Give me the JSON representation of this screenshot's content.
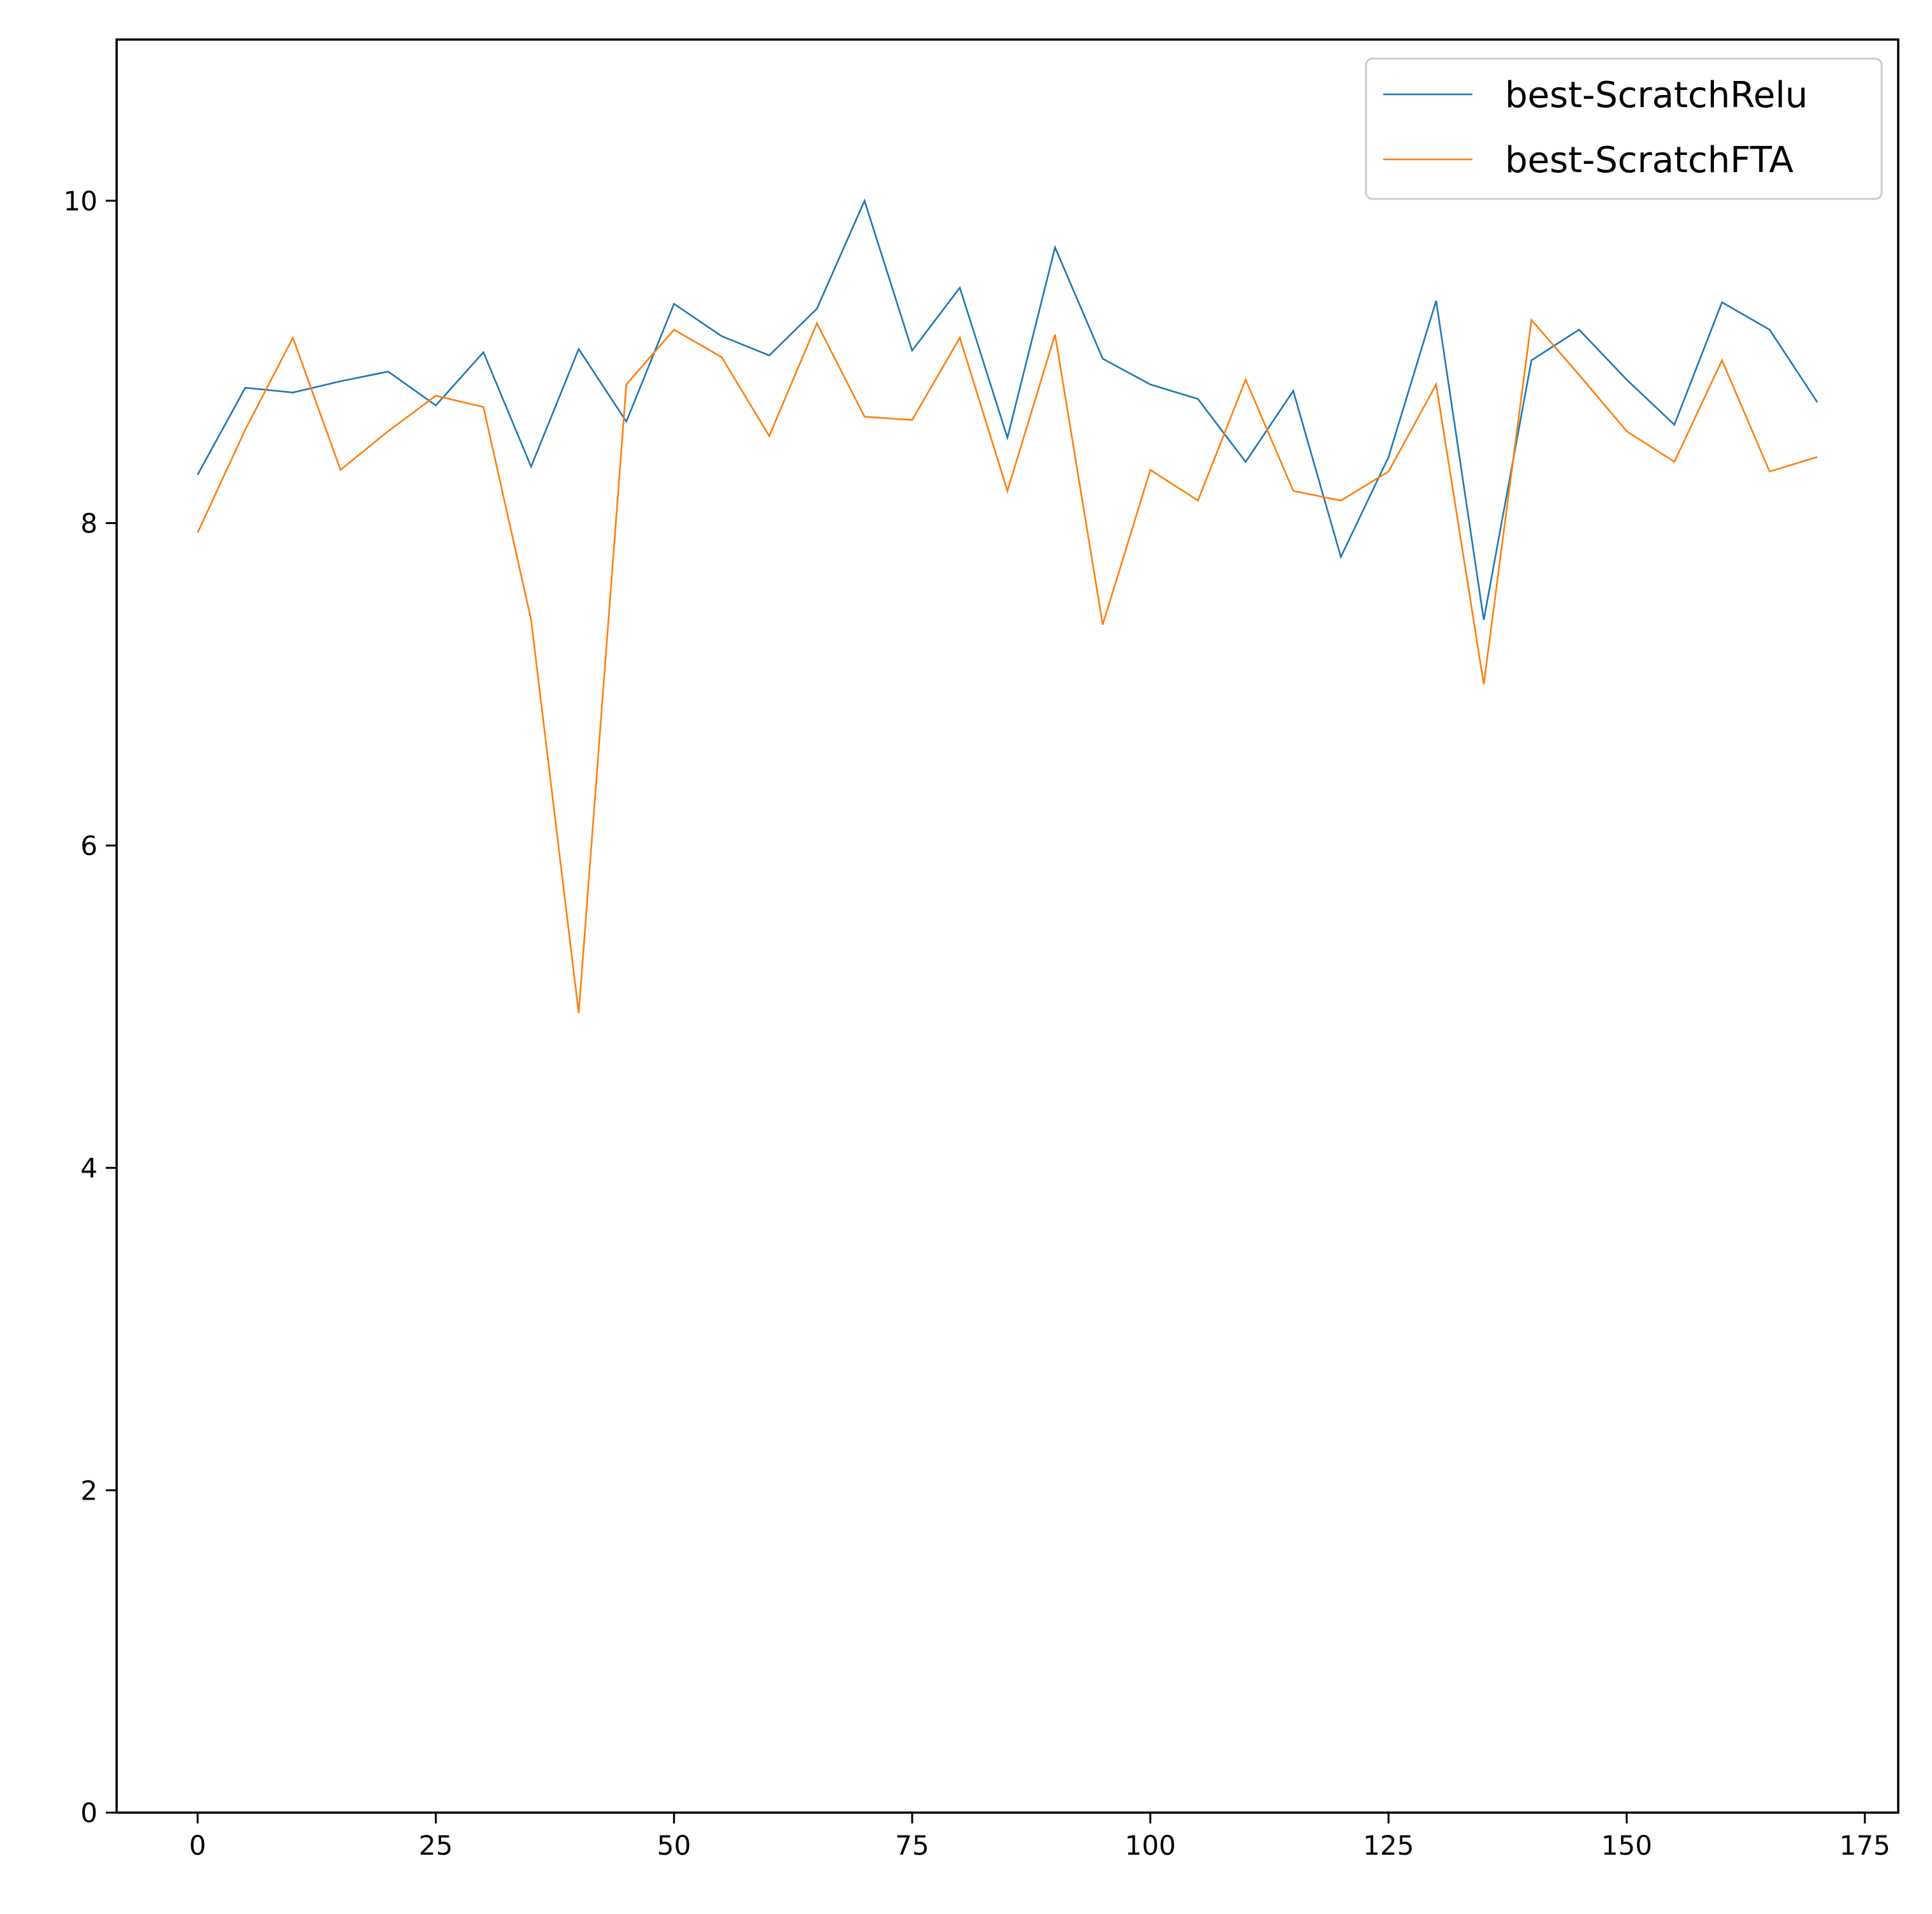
{
  "chart_data": {
    "type": "line",
    "title": "",
    "xlabel": "",
    "ylabel": "",
    "xlim": [
      -8.5,
      178.5
    ],
    "ylim": [
      0,
      11
    ],
    "xticks": [
      0,
      25,
      50,
      75,
      100,
      125,
      150,
      175
    ],
    "xtick_labels": [
      "0",
      "25",
      "50",
      "75",
      "100",
      "125",
      "150",
      "175"
    ],
    "yticks": [
      0,
      2,
      4,
      6,
      8,
      10
    ],
    "ytick_labels": [
      "0",
      "2",
      "4",
      "6",
      "8",
      "10"
    ],
    "grid": false,
    "legend_position": "top-right",
    "x": [
      0,
      5,
      10,
      15,
      20,
      25,
      30,
      35,
      40,
      45,
      50,
      55,
      60,
      65,
      70,
      75,
      80,
      85,
      90,
      95,
      100,
      105,
      110,
      115,
      120,
      125,
      130,
      135,
      140,
      145,
      150,
      155,
      160,
      165,
      170
    ],
    "series": [
      {
        "name": "best-ScratchRelu",
        "color": "#1f77b4",
        "values": [
          8.3,
          8.84,
          8.81,
          8.88,
          8.94,
          8.73,
          9.06,
          8.35,
          9.08,
          8.63,
          9.36,
          9.16,
          9.04,
          9.33,
          10.0,
          9.07,
          9.46,
          8.53,
          9.71,
          9.02,
          8.86,
          8.77,
          8.38,
          8.82,
          7.79,
          8.41,
          9.38,
          7.4,
          9.01,
          9.2,
          8.89,
          8.61,
          9.37,
          9.2,
          8.75
        ]
      },
      {
        "name": "best-ScratchFTA",
        "color": "#ff7f0e",
        "values": [
          7.94,
          8.58,
          9.15,
          8.33,
          8.57,
          8.79,
          8.72,
          7.4,
          4.96,
          8.86,
          9.2,
          9.03,
          8.54,
          9.24,
          8.66,
          8.64,
          9.15,
          8.2,
          9.17,
          7.37,
          8.33,
          8.14,
          8.89,
          8.2,
          8.14,
          8.32,
          8.86,
          7.0,
          9.26,
          8.92,
          8.57,
          8.38,
          9.01,
          8.32,
          8.41
        ]
      }
    ]
  }
}
